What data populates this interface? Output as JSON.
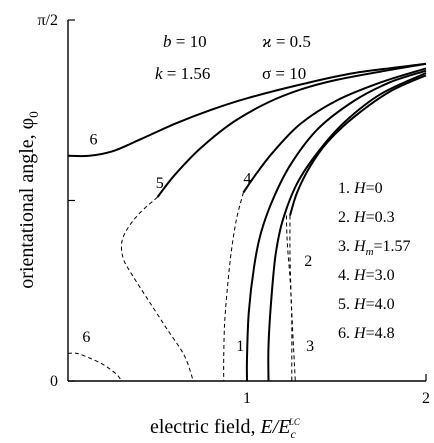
{
  "chart_data": {
    "type": "line",
    "xlabel": "electric field, ",
    "xlabel_var": "E/E",
    "xlabel_sub": "c",
    "xlabel_sup": "LC",
    "ylabel": "orientational angle, φ",
    "ylabel_sub": "0",
    "xlim": [
      0,
      2
    ],
    "ylim": [
      0,
      1.5708
    ],
    "x_ticks": [
      1,
      2
    ],
    "x_tick_labels": [
      "1",
      "2"
    ],
    "y_ticks": [
      0,
      1.5708
    ],
    "y_tick_labels": [
      "0",
      "π/2"
    ],
    "grid": false,
    "parameters": [
      {
        "symbol": "b",
        "value": "10"
      },
      {
        "symbol": "ϰ",
        "value": "0.5"
      },
      {
        "symbol": "k",
        "value": "1.56"
      },
      {
        "symbol": "σ",
        "value": "10"
      }
    ],
    "legend": [
      {
        "index": "1.",
        "var": "H",
        "sub": "",
        "value": "=0"
      },
      {
        "index": "2.",
        "var": "H",
        "sub": "",
        "value": "=0.3"
      },
      {
        "index": "3.",
        "var": "H",
        "sub": "m",
        "value": "=1.57"
      },
      {
        "index": "4.",
        "var": "H",
        "sub": "",
        "value": "=3.0"
      },
      {
        "index": "5.",
        "var": "H",
        "sub": "",
        "value": "=4.0"
      },
      {
        "index": "6.",
        "var": "H",
        "sub": "",
        "value": "=4.8"
      }
    ],
    "series": [
      {
        "name": "1",
        "stable": [
          [
            1.0,
            0
          ],
          [
            1.0,
            0.1
          ],
          [
            1.01,
            0.3
          ],
          [
            1.04,
            0.5
          ],
          [
            1.08,
            0.65
          ],
          [
            1.15,
            0.8
          ],
          [
            1.25,
            0.95
          ],
          [
            1.4,
            1.1
          ],
          [
            1.6,
            1.22
          ],
          [
            1.8,
            1.3
          ],
          [
            2.0,
            1.35
          ]
        ],
        "unstable": []
      },
      {
        "name": "2",
        "stable": [
          [
            1.12,
            0
          ],
          [
            1.12,
            0.15
          ],
          [
            1.135,
            0.35
          ],
          [
            1.16,
            0.55
          ],
          [
            1.2,
            0.7
          ],
          [
            1.28,
            0.86
          ],
          [
            1.4,
            1.0
          ],
          [
            1.55,
            1.13
          ],
          [
            1.75,
            1.25
          ],
          [
            2.0,
            1.34
          ]
        ],
        "unstable": [
          [
            1.22,
            0.72
          ],
          [
            1.225,
            0.6
          ],
          [
            1.24,
            0.45
          ],
          [
            1.25,
            0.3
          ],
          [
            1.26,
            0.15
          ],
          [
            1.27,
            0
          ]
        ]
      },
      {
        "name": "3",
        "stable": [
          [
            1.24,
            0.72
          ],
          [
            1.28,
            0.82
          ],
          [
            1.35,
            0.93
          ],
          [
            1.45,
            1.04
          ],
          [
            1.6,
            1.15
          ],
          [
            1.8,
            1.26
          ],
          [
            2.0,
            1.33
          ]
        ],
        "unstable": [
          [
            1.24,
            0.72
          ],
          [
            1.24,
            0.55
          ],
          [
            1.245,
            0.4
          ],
          [
            1.25,
            0.25
          ],
          [
            1.25,
            0.1
          ],
          [
            1.25,
            0
          ]
        ]
      },
      {
        "name": "4",
        "stable": [
          [
            0.98,
            0.82
          ],
          [
            1.05,
            0.9
          ],
          [
            1.15,
            1.0
          ],
          [
            1.3,
            1.12
          ],
          [
            1.5,
            1.22
          ],
          [
            1.75,
            1.3
          ],
          [
            2.0,
            1.36
          ]
        ],
        "unstable": [
          [
            0.98,
            0.82
          ],
          [
            0.94,
            0.7
          ],
          [
            0.91,
            0.55
          ],
          [
            0.89,
            0.4
          ],
          [
            0.875,
            0.25
          ],
          [
            0.87,
            0.1
          ],
          [
            0.87,
            0
          ]
        ]
      },
      {
        "name": "5",
        "stable": [
          [
            0.5,
            0.8
          ],
          [
            0.6,
            0.9
          ],
          [
            0.75,
            1.02
          ],
          [
            0.95,
            1.14
          ],
          [
            1.2,
            1.24
          ],
          [
            1.5,
            1.31
          ],
          [
            2.0,
            1.38
          ]
        ],
        "unstable": [
          [
            0.5,
            0.8
          ],
          [
            0.4,
            0.73
          ],
          [
            0.33,
            0.66
          ],
          [
            0.3,
            0.6
          ],
          [
            0.31,
            0.53
          ],
          [
            0.36,
            0.46
          ],
          [
            0.45,
            0.35
          ],
          [
            0.55,
            0.23
          ],
          [
            0.65,
            0.11
          ],
          [
            0.7,
            0
          ]
        ]
      },
      {
        "name": "6",
        "stable": [
          [
            0,
            0.98
          ],
          [
            0.12,
            0.98
          ],
          [
            0.25,
            1.0
          ],
          [
            0.4,
            1.05
          ],
          [
            0.6,
            1.12
          ],
          [
            0.8,
            1.18
          ],
          [
            1.0,
            1.23
          ],
          [
            1.3,
            1.29
          ],
          [
            1.6,
            1.34
          ],
          [
            2.0,
            1.38
          ]
        ],
        "unstable": [
          [
            0,
            0.12
          ],
          [
            0.05,
            0.12
          ],
          [
            0.12,
            0.1
          ],
          [
            0.2,
            0.07
          ],
          [
            0.27,
            0.03
          ],
          [
            0.3,
            0
          ]
        ]
      }
    ],
    "curve_labels": [
      {
        "text": "6",
        "x": 0.12,
        "y": 1.03
      },
      {
        "text": "5",
        "x": 0.49,
        "y": 0.84
      },
      {
        "text": "4",
        "x": 0.98,
        "y": 0.86
      },
      {
        "text": "2",
        "x": 1.32,
        "y": 0.5
      },
      {
        "text": "1",
        "x": 0.94,
        "y": 0.13
      },
      {
        "text": "3",
        "x": 1.33,
        "y": 0.13
      },
      {
        "text": "6",
        "x": 0.08,
        "y": 0.17
      }
    ]
  }
}
